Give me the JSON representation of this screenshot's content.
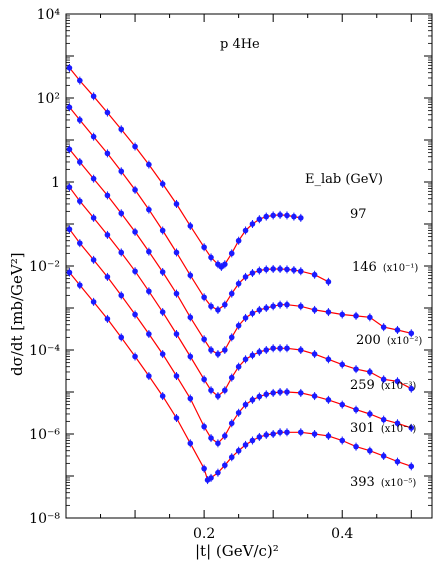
{
  "chart_data": {
    "type": "scatter",
    "title": "p 4He",
    "xlabel": "|t|  (GeV/c)²",
    "ylabel": "dσ/dt  [mb/GeV²]",
    "x_ticks": [
      "0.2",
      "0.4"
    ],
    "y_ticks": [
      "10⁻⁸",
      "10⁻⁶",
      "10⁻⁴",
      "10⁻²",
      "1",
      "10²",
      "10⁴"
    ],
    "xlim": [
      0.0,
      0.53
    ],
    "ylim_log10": [
      -8,
      4
    ],
    "y_scale": "log",
    "legend_header": "E_lab (GeV)",
    "marker_color": "#1a1aff",
    "fit_color": "#ff0000",
    "series": [
      {
        "energy": "97",
        "scale": "",
        "label": "97",
        "points": [
          [
            0.005,
            520
          ],
          [
            0.02,
            260
          ],
          [
            0.04,
            110
          ],
          [
            0.06,
            45
          ],
          [
            0.08,
            18
          ],
          [
            0.1,
            7
          ],
          [
            0.12,
            2.6
          ],
          [
            0.14,
            0.9
          ],
          [
            0.16,
            0.3
          ],
          [
            0.18,
            0.09
          ],
          [
            0.2,
            0.028
          ],
          [
            0.21,
            0.016
          ],
          [
            0.22,
            0.011
          ],
          [
            0.225,
            0.0095
          ],
          [
            0.23,
            0.011
          ],
          [
            0.24,
            0.02
          ],
          [
            0.25,
            0.04
          ],
          [
            0.26,
            0.07
          ],
          [
            0.27,
            0.1
          ],
          [
            0.28,
            0.13
          ],
          [
            0.29,
            0.15
          ],
          [
            0.3,
            0.16
          ],
          [
            0.31,
            0.165
          ],
          [
            0.32,
            0.16
          ],
          [
            0.33,
            0.15
          ],
          [
            0.34,
            0.14
          ]
        ]
      },
      {
        "energy": "146",
        "scale": "x10⁻¹",
        "label": "146",
        "points": [
          [
            0.005,
            60
          ],
          [
            0.02,
            30
          ],
          [
            0.04,
            12
          ],
          [
            0.06,
            4.8
          ],
          [
            0.08,
            1.8
          ],
          [
            0.1,
            0.65
          ],
          [
            0.12,
            0.22
          ],
          [
            0.14,
            0.07
          ],
          [
            0.16,
            0.021
          ],
          [
            0.18,
            0.006
          ],
          [
            0.2,
            0.0018
          ],
          [
            0.21,
            0.0011
          ],
          [
            0.22,
            0.0009
          ],
          [
            0.23,
            0.0012
          ],
          [
            0.24,
            0.0022
          ],
          [
            0.25,
            0.0038
          ],
          [
            0.26,
            0.0055
          ],
          [
            0.27,
            0.0068
          ],
          [
            0.28,
            0.0078
          ],
          [
            0.29,
            0.0083
          ],
          [
            0.3,
            0.0085
          ],
          [
            0.31,
            0.0085
          ],
          [
            0.32,
            0.0083
          ],
          [
            0.33,
            0.008
          ],
          [
            0.34,
            0.0075
          ],
          [
            0.36,
            0.0062
          ],
          [
            0.38,
            0.0042
          ]
        ]
      },
      {
        "energy": "200",
        "scale": "x10⁻²",
        "label": "200",
        "points": [
          [
            0.005,
            6
          ],
          [
            0.02,
            3
          ],
          [
            0.04,
            1.2
          ],
          [
            0.06,
            0.48
          ],
          [
            0.08,
            0.18
          ],
          [
            0.1,
            0.065
          ],
          [
            0.12,
            0.022
          ],
          [
            0.14,
            0.0072
          ],
          [
            0.16,
            0.0022
          ],
          [
            0.18,
            0.0006
          ],
          [
            0.2,
            0.00018
          ],
          [
            0.21,
            0.0001
          ],
          [
            0.22,
            8e-05
          ],
          [
            0.23,
            0.0001
          ],
          [
            0.24,
            0.0002
          ],
          [
            0.25,
            0.00038
          ],
          [
            0.26,
            0.00058
          ],
          [
            0.27,
            0.00075
          ],
          [
            0.28,
            0.0009
          ],
          [
            0.29,
            0.001
          ],
          [
            0.3,
            0.0011
          ],
          [
            0.31,
            0.0012
          ],
          [
            0.32,
            0.0012
          ],
          [
            0.34,
            0.0011
          ],
          [
            0.36,
            0.0009
          ],
          [
            0.38,
            0.0008
          ],
          [
            0.4,
            0.0007
          ],
          [
            0.42,
            0.00065
          ],
          [
            0.44,
            0.0006
          ],
          [
            0.46,
            0.00035
          ],
          [
            0.48,
            0.0003
          ],
          [
            0.5,
            0.00025
          ]
        ]
      },
      {
        "energy": "259",
        "scale": "x10⁻³",
        "label": "259",
        "points": [
          [
            0.005,
            0.75
          ],
          [
            0.02,
            0.35
          ],
          [
            0.04,
            0.14
          ],
          [
            0.06,
            0.055
          ],
          [
            0.08,
            0.021
          ],
          [
            0.1,
            0.0075
          ],
          [
            0.12,
            0.0025
          ],
          [
            0.14,
            0.0008
          ],
          [
            0.16,
            0.00024
          ],
          [
            0.18,
            7e-05
          ],
          [
            0.2,
            2e-05
          ],
          [
            0.21,
            1.1e-05
          ],
          [
            0.22,
            8e-06
          ],
          [
            0.23,
            1.1e-05
          ],
          [
            0.24,
            2.2e-05
          ],
          [
            0.25,
            4e-05
          ],
          [
            0.26,
            6e-05
          ],
          [
            0.27,
            7.5e-05
          ],
          [
            0.28,
            9e-05
          ],
          [
            0.29,
            0.0001
          ],
          [
            0.3,
            0.00011
          ],
          [
            0.31,
            0.00011
          ],
          [
            0.32,
            0.00011
          ],
          [
            0.34,
            0.0001
          ],
          [
            0.36,
            8e-05
          ],
          [
            0.38,
            6e-05
          ],
          [
            0.4,
            4.5e-05
          ],
          [
            0.42,
            3.5e-05
          ],
          [
            0.44,
            3e-05
          ],
          [
            0.46,
            2e-05
          ],
          [
            0.48,
            1.8e-05
          ],
          [
            0.5,
            1.2e-05
          ]
        ]
      },
      {
        "energy": "301",
        "scale": "x10⁻⁴",
        "label": "301",
        "points": [
          [
            0.005,
            0.075
          ],
          [
            0.02,
            0.035
          ],
          [
            0.04,
            0.014
          ],
          [
            0.06,
            0.0055
          ],
          [
            0.08,
            0.002
          ],
          [
            0.1,
            0.0007
          ],
          [
            0.12,
            0.00024
          ],
          [
            0.14,
            8e-05
          ],
          [
            0.16,
            2.4e-05
          ],
          [
            0.18,
            7e-06
          ],
          [
            0.2,
            1.5e-06
          ],
          [
            0.21,
            8e-07
          ],
          [
            0.22,
            6e-07
          ],
          [
            0.23,
            9e-07
          ],
          [
            0.24,
            1.8e-06
          ],
          [
            0.25,
            3.2e-06
          ],
          [
            0.26,
            5e-06
          ],
          [
            0.27,
            6.5e-06
          ],
          [
            0.28,
            7.8e-06
          ],
          [
            0.29,
            8.8e-06
          ],
          [
            0.3,
            9.5e-06
          ],
          [
            0.31,
            1e-05
          ],
          [
            0.32,
            1e-05
          ],
          [
            0.34,
            9.5e-06
          ],
          [
            0.36,
            8e-06
          ],
          [
            0.38,
            6.5e-06
          ],
          [
            0.4,
            5e-06
          ],
          [
            0.42,
            3.8e-06
          ],
          [
            0.44,
            3e-06
          ],
          [
            0.46,
            2.2e-06
          ],
          [
            0.48,
            1.8e-06
          ],
          [
            0.5,
            1.4e-06
          ]
        ]
      },
      {
        "energy": "393",
        "scale": "x10⁻⁵",
        "label": "393",
        "points": [
          [
            0.005,
            0.007
          ],
          [
            0.02,
            0.0035
          ],
          [
            0.04,
            0.0014
          ],
          [
            0.06,
            0.00055
          ],
          [
            0.08,
            0.0002
          ],
          [
            0.1,
            7e-05
          ],
          [
            0.12,
            2.4e-05
          ],
          [
            0.14,
            8e-06
          ],
          [
            0.16,
            2.4e-06
          ],
          [
            0.18,
            6e-07
          ],
          [
            0.2,
            1.5e-07
          ],
          [
            0.205,
            8e-08
          ],
          [
            0.21,
            9e-08
          ],
          [
            0.22,
            1.2e-07
          ],
          [
            0.23,
            1.8e-07
          ],
          [
            0.24,
            2.8e-07
          ],
          [
            0.25,
            4e-07
          ],
          [
            0.26,
            5.5e-07
          ],
          [
            0.27,
            7e-07
          ],
          [
            0.28,
            8.5e-07
          ],
          [
            0.29,
            9.5e-07
          ],
          [
            0.3,
            1e-06
          ],
          [
            0.31,
            1.1e-06
          ],
          [
            0.32,
            1.1e-06
          ],
          [
            0.34,
            1.1e-06
          ],
          [
            0.36,
            1e-06
          ],
          [
            0.38,
            9e-07
          ],
          [
            0.4,
            7e-07
          ],
          [
            0.42,
            5e-07
          ],
          [
            0.44,
            4e-07
          ],
          [
            0.46,
            3e-07
          ],
          [
            0.48,
            2.2e-07
          ],
          [
            0.5,
            1.7e-07
          ]
        ]
      }
    ]
  }
}
